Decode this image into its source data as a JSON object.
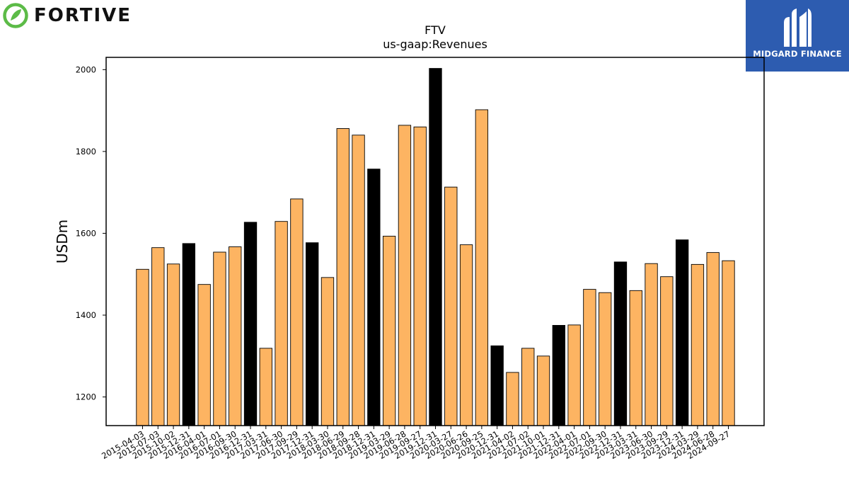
{
  "brand": {
    "company_name": "FORTIVE",
    "publisher_name": "MIDGARD FINANCE",
    "company_color": "#5cbb47",
    "publisher_bg": "#2d5cb0"
  },
  "chart_data": {
    "type": "bar",
    "title": "FTV",
    "subtitle": "us-gaap:Revenues",
    "xlabel": "",
    "ylabel": "USDm",
    "ylim": [
      1130,
      2030
    ],
    "yticks": [
      1200,
      1400,
      1600,
      1800,
      2000
    ],
    "grid": false,
    "legend": "none",
    "colors": {
      "quarter": "#fdb462",
      "year_end": "#000000",
      "edge": "#000000"
    },
    "categories": [
      "2015-04-03",
      "2015-07-03",
      "2015-10-02",
      "2015-12-31",
      "2016-04-01",
      "2016-07-01",
      "2016-09-30",
      "2016-12-31",
      "2017-03-31",
      "2017-06-30",
      "2017-09-29",
      "2017-12-31",
      "2018-03-30",
      "2018-06-29",
      "2018-09-28",
      "2018-12-31",
      "2019-03-29",
      "2019-06-28",
      "2019-09-27",
      "2019-12-31",
      "2020-03-27",
      "2020-06-26",
      "2020-09-25",
      "2020-12-31",
      "2021-04-02",
      "2021-07-02",
      "2021-10-01",
      "2021-12-31",
      "2022-04-01",
      "2022-07-01",
      "2022-09-30",
      "2022-12-31",
      "2023-03-31",
      "2023-06-30",
      "2023-09-29",
      "2023-12-31",
      "2024-03-29",
      "2024-06-28",
      "2024-09-27"
    ],
    "values": [
      1512,
      1565,
      1525,
      1575,
      1475,
      1554,
      1567,
      1627,
      1319,
      1629,
      1684,
      1577,
      1492,
      1856,
      1840,
      1757,
      1593,
      1864,
      1860,
      2003,
      1713,
      1572,
      1902,
      1325,
      1260,
      1319,
      1300,
      1375,
      1376,
      1463,
      1455,
      1530,
      1460,
      1526,
      1494,
      1584,
      1524,
      1553,
      1533
    ],
    "year_end": [
      false,
      false,
      false,
      true,
      false,
      false,
      false,
      true,
      false,
      false,
      false,
      true,
      false,
      false,
      false,
      true,
      false,
      false,
      false,
      true,
      false,
      false,
      false,
      true,
      false,
      false,
      false,
      true,
      false,
      false,
      false,
      true,
      false,
      false,
      false,
      true,
      false,
      false,
      false
    ]
  }
}
